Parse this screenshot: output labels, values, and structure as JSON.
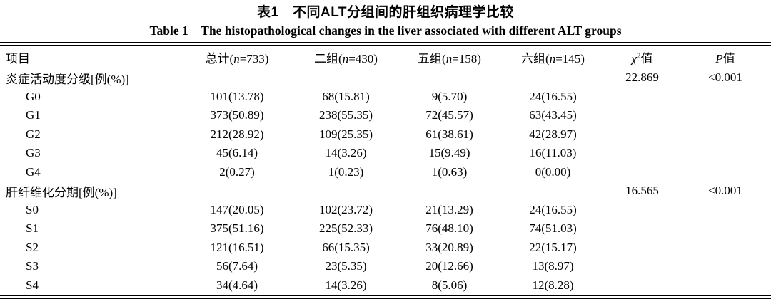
{
  "titles": {
    "zh": "表1　不同ALT分组间的肝组织病理学比较",
    "en": "Table 1　The histopathological changes in the liver associated with different ALT groups"
  },
  "table": {
    "columns": [
      {
        "label": "项目"
      },
      {
        "pre": "总计(",
        "italic": "n",
        "post": "=733)"
      },
      {
        "pre": "二组(",
        "italic": "n",
        "post": "=430)"
      },
      {
        "pre": "五组(",
        "italic": "n",
        "post": "=158)"
      },
      {
        "pre": "六组(",
        "italic": "n",
        "post": "=145)"
      },
      {
        "italic": "χ",
        "sup": "2",
        "post": "值"
      },
      {
        "italic": "P",
        "post": "值"
      }
    ],
    "rows": [
      {
        "label": "炎症活动度分级[例(%)]",
        "indent": false,
        "values": [
          "",
          "",
          "",
          ""
        ],
        "chi": "22.869",
        "p": "<0.001"
      },
      {
        "label": "G0",
        "indent": true,
        "values": [
          "101(13.78)",
          "68(15.81)",
          "9(5.70)",
          "24(16.55)"
        ],
        "chi": "",
        "p": ""
      },
      {
        "label": "G1",
        "indent": true,
        "values": [
          "373(50.89)",
          "238(55.35)",
          "72(45.57)",
          "63(43.45)"
        ],
        "chi": "",
        "p": ""
      },
      {
        "label": "G2",
        "indent": true,
        "values": [
          "212(28.92)",
          "109(25.35)",
          "61(38.61)",
          "42(28.97)"
        ],
        "chi": "",
        "p": ""
      },
      {
        "label": "G3",
        "indent": true,
        "values": [
          "45(6.14)",
          "14(3.26)",
          "15(9.49)",
          "16(11.03)"
        ],
        "chi": "",
        "p": ""
      },
      {
        "label": "G4",
        "indent": true,
        "values": [
          "2(0.27)",
          "1(0.23)",
          "1(0.63)",
          "0(0.00)"
        ],
        "chi": "",
        "p": ""
      },
      {
        "label": "肝纤维化分期[例(%)]",
        "indent": false,
        "values": [
          "",
          "",
          "",
          ""
        ],
        "chi": "16.565",
        "p": "<0.001"
      },
      {
        "label": "S0",
        "indent": true,
        "values": [
          "147(20.05)",
          "102(23.72)",
          "21(13.29)",
          "24(16.55)"
        ],
        "chi": "",
        "p": ""
      },
      {
        "label": "S1",
        "indent": true,
        "values": [
          "375(51.16)",
          "225(52.33)",
          "76(48.10)",
          "74(51.03)"
        ],
        "chi": "",
        "p": ""
      },
      {
        "label": "S2",
        "indent": true,
        "values": [
          "121(16.51)",
          "66(15.35)",
          "33(20.89)",
          "22(15.17)"
        ],
        "chi": "",
        "p": ""
      },
      {
        "label": "S3",
        "indent": true,
        "values": [
          "56(7.64)",
          "23(5.35)",
          "20(12.66)",
          "13(8.97)"
        ],
        "chi": "",
        "p": ""
      },
      {
        "label": "S4",
        "indent": true,
        "values": [
          "34(4.64)",
          "14(3.26)",
          "8(5.06)",
          "12(8.28)"
        ],
        "chi": "",
        "p": ""
      }
    ]
  }
}
